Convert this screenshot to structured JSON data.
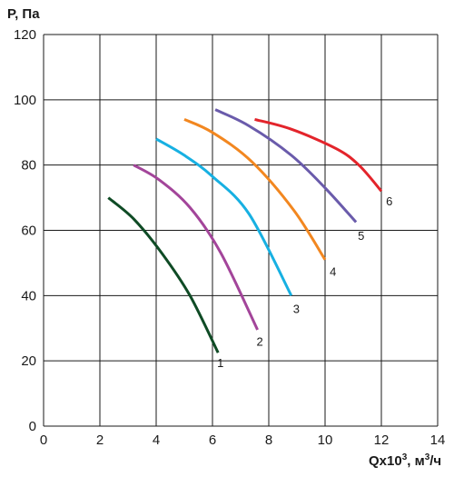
{
  "chart_data": {
    "type": "line",
    "ylabel": "P, Па",
    "xlabel": {
      "base": "Qx10",
      "exp": "3",
      "unit_prefix": ", м",
      "unit_exp": "3",
      "unit_suffix": "/ч"
    },
    "xlim": [
      0,
      14
    ],
    "ylim": [
      0,
      120
    ],
    "xticks": [
      0,
      2,
      4,
      6,
      8,
      10,
      12,
      14
    ],
    "yticks": [
      0,
      20,
      40,
      60,
      80,
      100,
      120
    ],
    "grid": true,
    "legend": "none",
    "series": [
      {
        "name": "1",
        "color": "#0f4b25",
        "points": [
          [
            2.3,
            70
          ],
          [
            3.2,
            63.5
          ],
          [
            4.2,
            53
          ],
          [
            5.2,
            40
          ],
          [
            6.2,
            22.5
          ]
        ]
      },
      {
        "name": "2",
        "color": "#a3459a",
        "points": [
          [
            3.2,
            80
          ],
          [
            4.1,
            75.5
          ],
          [
            5.2,
            67
          ],
          [
            6.3,
            53
          ],
          [
            7.6,
            29.5
          ]
        ]
      },
      {
        "name": "3",
        "color": "#17b0e2",
        "points": [
          [
            4.0,
            88
          ],
          [
            5.0,
            83
          ],
          [
            6.0,
            76.5
          ],
          [
            7.3,
            65
          ],
          [
            8.8,
            40
          ]
        ]
      },
      {
        "name": "4",
        "color": "#f28720",
        "points": [
          [
            5.0,
            94
          ],
          [
            6.0,
            90
          ],
          [
            7.4,
            81
          ],
          [
            8.9,
            66
          ],
          [
            10.0,
            51
          ]
        ]
      },
      {
        "name": "5",
        "color": "#6a5bab",
        "points": [
          [
            6.1,
            97
          ],
          [
            7.3,
            92
          ],
          [
            8.8,
            83
          ],
          [
            10.0,
            73
          ],
          [
            11.1,
            62.5
          ]
        ]
      },
      {
        "name": "6",
        "color": "#e3242b",
        "points": [
          [
            7.5,
            94
          ],
          [
            8.8,
            91
          ],
          [
            10.4,
            85
          ],
          [
            11.2,
            80
          ],
          [
            12.0,
            72
          ]
        ]
      }
    ],
    "curve_labels": [
      {
        "text": "1",
        "x": 6.1,
        "y": 19.5
      },
      {
        "text": "2",
        "x": 7.5,
        "y": 26
      },
      {
        "text": "3",
        "x": 8.8,
        "y": 36
      },
      {
        "text": "4",
        "x": 10.1,
        "y": 47.5
      },
      {
        "text": "5",
        "x": 11.1,
        "y": 58.5
      },
      {
        "text": "6",
        "x": 12.1,
        "y": 69
      }
    ]
  }
}
